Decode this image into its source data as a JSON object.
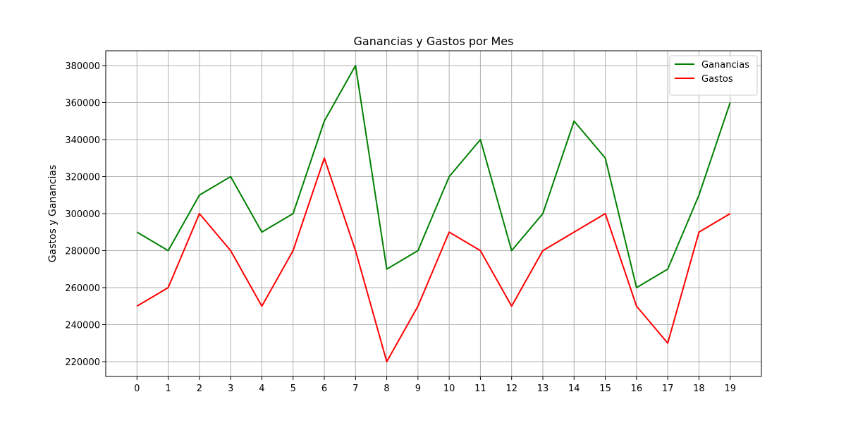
{
  "chart_data": {
    "type": "line",
    "title": "Ganancias y Gastos por Mes",
    "xlabel": "",
    "ylabel": "Gastos y Ganancias",
    "x": [
      0,
      1,
      2,
      3,
      4,
      5,
      6,
      7,
      8,
      9,
      10,
      11,
      12,
      13,
      14,
      15,
      16,
      17,
      18,
      19
    ],
    "xlim": [
      -1,
      20
    ],
    "ylim": [
      212000,
      388000
    ],
    "yticks": [
      220000,
      240000,
      260000,
      280000,
      300000,
      320000,
      340000,
      360000,
      380000
    ],
    "grid": true,
    "legend_position": "top-right",
    "series": [
      {
        "name": "Ganancias",
        "color": "#008000",
        "values": [
          290000,
          280000,
          310000,
          320000,
          290000,
          300000,
          350000,
          380000,
          270000,
          280000,
          320000,
          340000,
          280000,
          300000,
          350000,
          330000,
          260000,
          270000,
          310000,
          360000
        ]
      },
      {
        "name": "Gastos",
        "color": "#ff0000",
        "values": [
          250000,
          260000,
          300000,
          280000,
          250000,
          280000,
          330000,
          280000,
          220000,
          250000,
          290000,
          280000,
          250000,
          280000,
          290000,
          300000,
          250000,
          230000,
          290000,
          300000
        ]
      }
    ]
  }
}
